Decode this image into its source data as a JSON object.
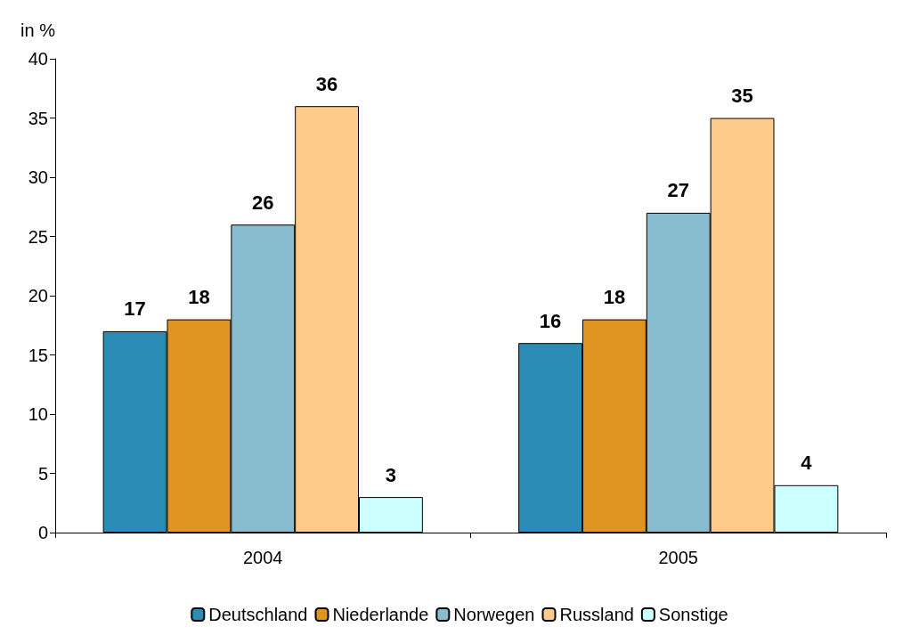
{
  "chart_data": {
    "type": "bar",
    "ylabel": "in %",
    "categories": [
      "2004",
      "2005"
    ],
    "series": [
      {
        "name": "Deutschland",
        "color": "#2b8db5",
        "values": [
          17,
          16
        ]
      },
      {
        "name": "Niederlande",
        "color": "#e09422",
        "values": [
          18,
          18
        ]
      },
      {
        "name": "Norwegen",
        "color": "#88bccf",
        "values": [
          26,
          27
        ]
      },
      {
        "name": "Russland",
        "color": "#fecb8a",
        "values": [
          36,
          35
        ]
      },
      {
        "name": "Sonstige",
        "color": "#ccffff",
        "values": [
          3,
          4
        ]
      }
    ],
    "ylim": [
      0,
      40
    ],
    "yticks": [
      0,
      5,
      10,
      15,
      20,
      25,
      30,
      35,
      40
    ],
    "grid": false,
    "legend": "bottom",
    "data_labels": true
  }
}
